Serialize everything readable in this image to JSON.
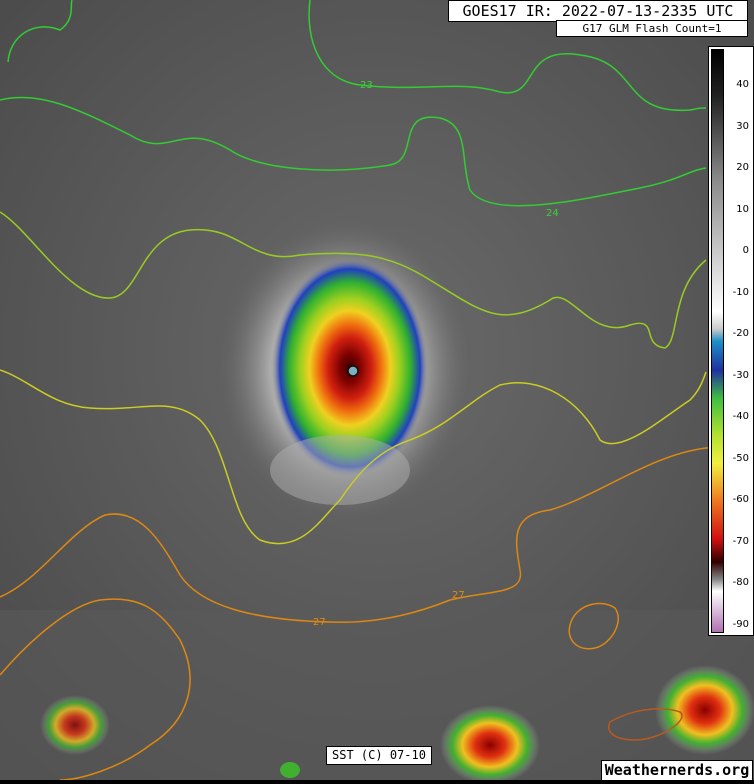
{
  "header": {
    "title": "GOES17 IR: 2022-07-13-2335 UTC",
    "subtitle": "G17 GLM Flash Count=1"
  },
  "footer": {
    "sst_label": "SST (C) 07-10",
    "credit": "Weathernerds.org"
  },
  "colorbar": {
    "ticks": [
      "40",
      "30",
      "20",
      "10",
      "0",
      "-10",
      "-20",
      "-30",
      "-40",
      "-50",
      "-60",
      "-70",
      "-80",
      "-90"
    ]
  },
  "contours": [
    {
      "label": "23",
      "color": "#3ad23a"
    },
    {
      "label": "24",
      "color": "#3ad23a"
    },
    {
      "label": "27",
      "color": "#e08a14"
    },
    {
      "label": "27",
      "color": "#e08a14"
    }
  ],
  "colors": {
    "contour_green": "#33cc33",
    "contour_lightgreen": "#99cc22",
    "contour_yellow": "#cccc22",
    "contour_orange": "#dd8811"
  }
}
